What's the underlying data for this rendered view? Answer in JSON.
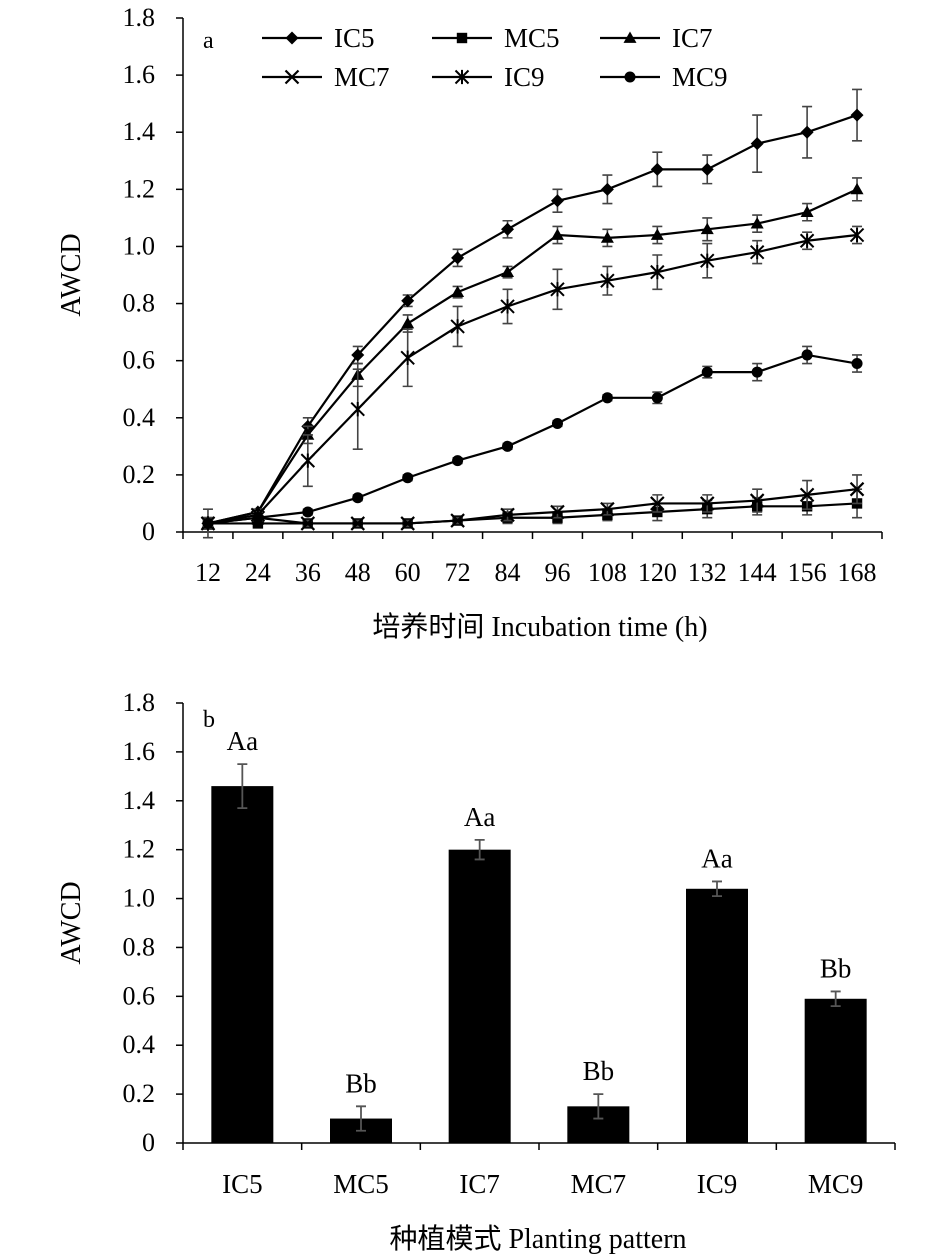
{
  "chart_data": [
    {
      "type": "line",
      "panel_label": "a",
      "xlabel": "培养时间 Incubation time (h)",
      "ylabel": "AWCD",
      "x": [
        12,
        24,
        36,
        48,
        60,
        72,
        84,
        96,
        108,
        120,
        132,
        144,
        156,
        168
      ],
      "y_ticks": [
        "0",
        "0.2",
        "0.4",
        "0.6",
        "0.8",
        "1.0",
        "1.2",
        "1.4",
        "1.6",
        "1.8"
      ],
      "ylim": [
        0,
        1.8
      ],
      "grid": false,
      "legend_position": "top",
      "series": [
        {
          "name": "IC5",
          "marker": "diamond",
          "values": [
            0.03,
            0.07,
            0.37,
            0.62,
            0.81,
            0.96,
            1.06,
            1.16,
            1.2,
            1.27,
            1.27,
            1.36,
            1.4,
            1.46
          ],
          "errors": [
            0.02,
            0.01,
            0.03,
            0.03,
            0.02,
            0.03,
            0.03,
            0.04,
            0.05,
            0.06,
            0.05,
            0.1,
            0.09,
            0.09
          ]
        },
        {
          "name": "MC5",
          "marker": "square",
          "values": [
            0.03,
            0.03,
            0.03,
            0.03,
            0.03,
            0.04,
            0.05,
            0.05,
            0.06,
            0.07,
            0.08,
            0.09,
            0.09,
            0.1
          ],
          "errors": [
            0.01,
            0.01,
            0.01,
            0.01,
            0.01,
            0.01,
            0.02,
            0.02,
            0.02,
            0.03,
            0.03,
            0.03,
            0.03,
            0.05
          ]
        },
        {
          "name": "IC7",
          "marker": "triangle",
          "values": [
            0.03,
            0.07,
            0.34,
            0.55,
            0.73,
            0.84,
            0.91,
            1.04,
            1.03,
            1.04,
            1.06,
            1.08,
            1.12,
            1.2
          ],
          "errors": [
            0.02,
            0.01,
            0.03,
            0.04,
            0.03,
            0.02,
            0.02,
            0.03,
            0.03,
            0.03,
            0.04,
            0.03,
            0.03,
            0.04
          ]
        },
        {
          "name": "MC7",
          "marker": "x",
          "values": [
            0.03,
            0.05,
            0.03,
            0.03,
            0.03,
            0.04,
            0.06,
            0.07,
            0.08,
            0.1,
            0.1,
            0.11,
            0.13,
            0.15
          ],
          "errors": [
            0.05,
            0.01,
            0.01,
            0.01,
            0.01,
            0.01,
            0.02,
            0.02,
            0.02,
            0.03,
            0.03,
            0.04,
            0.05,
            0.05
          ]
        },
        {
          "name": "IC9",
          "marker": "asterisk",
          "values": [
            0.03,
            0.06,
            0.25,
            0.43,
            0.61,
            0.72,
            0.79,
            0.85,
            0.88,
            0.91,
            0.95,
            0.98,
            1.02,
            1.04
          ],
          "errors": [
            0.02,
            0.01,
            0.09,
            0.14,
            0.1,
            0.07,
            0.06,
            0.07,
            0.05,
            0.06,
            0.06,
            0.04,
            0.03,
            0.03
          ]
        },
        {
          "name": "MC9",
          "marker": "circle",
          "values": [
            0.03,
            0.05,
            0.07,
            0.12,
            0.19,
            0.25,
            0.3,
            0.38,
            0.47,
            0.47,
            0.56,
            0.56,
            0.62,
            0.59
          ],
          "errors": [
            0.01,
            0.01,
            0.01,
            0.01,
            0.01,
            0.01,
            0.01,
            0.01,
            0.01,
            0.02,
            0.02,
            0.03,
            0.03,
            0.03
          ]
        }
      ]
    },
    {
      "type": "bar",
      "panel_label": "b",
      "xlabel": "种植模式 Planting pattern",
      "ylabel": "AWCD",
      "categories": [
        "IC5",
        "MC5",
        "IC7",
        "MC7",
        "IC9",
        "MC9"
      ],
      "values": [
        1.46,
        0.1,
        1.2,
        0.15,
        1.04,
        0.59
      ],
      "errors": [
        0.09,
        0.05,
        0.04,
        0.05,
        0.03,
        0.03
      ],
      "annotations": [
        "Aa",
        "Bb",
        "Aa",
        "Bb",
        "Aa",
        "Bb"
      ],
      "y_ticks": [
        "0",
        "0.2",
        "0.4",
        "0.6",
        "0.8",
        "1.0",
        "1.2",
        "1.4",
        "1.6",
        "1.8"
      ],
      "ylim": [
        0,
        1.8
      ],
      "bar_color": "#000000",
      "grid": false
    }
  ]
}
